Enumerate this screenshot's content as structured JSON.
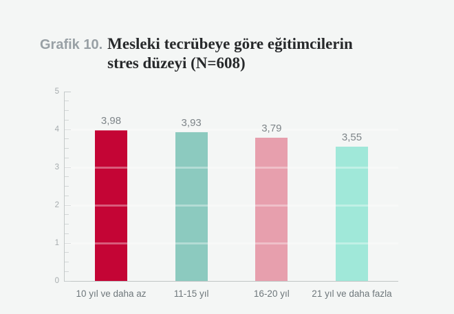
{
  "page": {
    "background": "#f4f6f5"
  },
  "header": {
    "label": "Grafik 10.",
    "title_lines": [
      "Mesleki tecrübeye göre eğitimcilerin",
      "stres düzeyi (N=608)"
    ]
  },
  "chart_data": {
    "type": "bar",
    "title": "Grafik 10. Mesleki tecrübeye göre eğitimcilerin stres düzeyi (N=608)",
    "sample_size_note": "N=608",
    "categories": [
      "10 yıl ve daha az",
      "11-15 yıl",
      "16-20 yıl",
      "21 yıl ve daha fazla"
    ],
    "values": [
      3.98,
      3.93,
      3.79,
      3.55
    ],
    "value_labels": [
      "3,98",
      "3,93",
      "3,79",
      "3,55"
    ],
    "bar_colors": [
      "#c40535",
      "#8ccabf",
      "#e79fad",
      "#a0e8d9"
    ],
    "xlabel": "",
    "ylabel": "",
    "ylim": [
      0,
      5
    ],
    "y_major_step": 1,
    "y_minor_step": 0.25,
    "y_tick_labels": [
      "0",
      "1",
      "2",
      "3",
      "4",
      "5"
    ],
    "grid": "translucent white horizontal lines at integer values overlaying bars",
    "legend_position": "none"
  }
}
